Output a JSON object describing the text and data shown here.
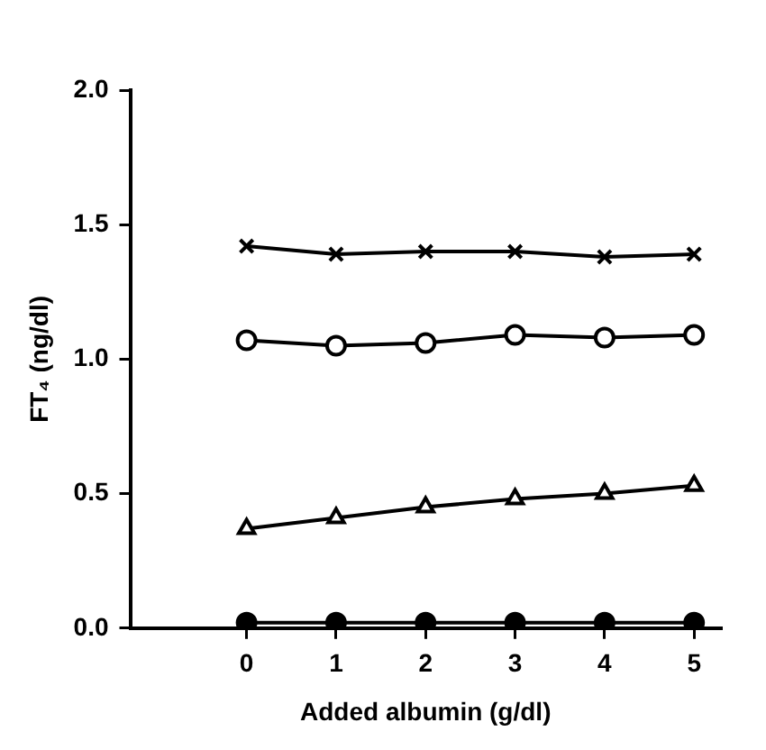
{
  "chart_data": {
    "type": "line",
    "xlabel": "Added albumin (g/dl)",
    "ylabel": "FT₄ (ng/dl)",
    "x": [
      0,
      1,
      2,
      3,
      4,
      5
    ],
    "series": [
      {
        "color": "#000000",
        "marker": "cross",
        "values": [
          1.42,
          1.39,
          1.4,
          1.4,
          1.38,
          1.39
        ]
      },
      {
        "color": "#000000",
        "marker": "circle",
        "values": [
          1.07,
          1.05,
          1.06,
          1.09,
          1.08,
          1.09
        ]
      },
      {
        "color": "#000000",
        "marker": "triangle",
        "values": [
          0.37,
          0.41,
          0.45,
          0.48,
          0.5,
          0.53
        ]
      },
      {
        "color": "#000000",
        "marker": "circle",
        "values": [
          0.02,
          0.02,
          0.02,
          0.02,
          0.02,
          0.02
        ]
      }
    ],
    "xlim": [
      -1.3,
      5.3
    ],
    "xticks": [
      0,
      1,
      2,
      3,
      4,
      5
    ],
    "ylim": [
      0,
      2
    ],
    "yticks": [
      {
        "value": 0,
        "label": "0.0"
      },
      0.5,
      {
        "value": 1,
        "label": "1.0"
      },
      1.5,
      {
        "value": 2,
        "label": "2.0"
      }
    ],
    "grid": false,
    "legend": false,
    "line_style": "solid"
  }
}
